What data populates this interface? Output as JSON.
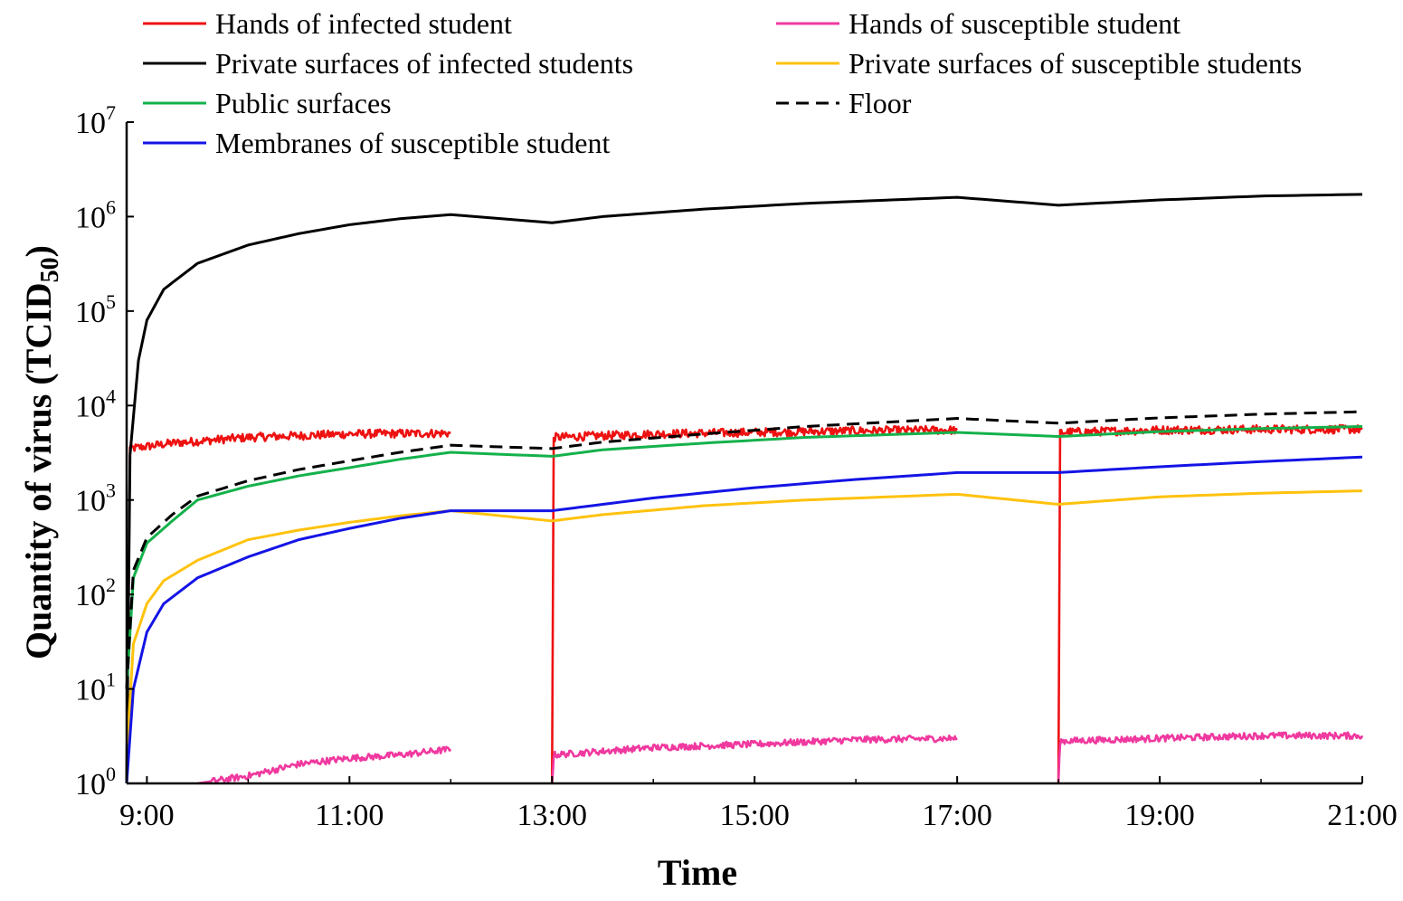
{
  "chart_data": {
    "type": "line",
    "title": "",
    "xlabel": "Time",
    "ylabel": "Quantity of virus (TCID50)",
    "ylabel_main": "Quantity of virus (TCID",
    "ylabel_sub": "50",
    "ylabel_close": ")",
    "yscale": "log",
    "xlim": [
      "8:48",
      "21:00"
    ],
    "ylim": [
      1,
      10000000
    ],
    "x_ticks": [
      "9:00",
      "11:00",
      "13:00",
      "15:00",
      "17:00",
      "19:00",
      "21:00"
    ],
    "y_ticks": [
      {
        "base": "10",
        "exp": "0"
      },
      {
        "base": "10",
        "exp": "1"
      },
      {
        "base": "10",
        "exp": "2"
      },
      {
        "base": "10",
        "exp": "3"
      },
      {
        "base": "10",
        "exp": "4"
      },
      {
        "base": "10",
        "exp": "5"
      },
      {
        "base": "10",
        "exp": "6"
      },
      {
        "base": "10",
        "exp": "7"
      }
    ],
    "grid": false,
    "legend_position": "top",
    "series": [
      {
        "name": "Hands of infected student",
        "color": "#ee1111",
        "dash": "solid",
        "noise": 0.09,
        "points": [
          [
            "8:48",
            1
          ],
          [
            "8:50",
            3500
          ],
          [
            "9:15",
            4000
          ],
          [
            "10:00",
            4600
          ],
          [
            "11:00",
            5000
          ],
          [
            "12:00",
            5100
          ],
          null,
          [
            "13:00",
            1
          ],
          [
            "13:01",
            4600
          ],
          [
            "14:00",
            5000
          ],
          [
            "15:00",
            5200
          ],
          [
            "16:00",
            5400
          ],
          [
            "17:00",
            5500
          ],
          null,
          [
            "18:00",
            1
          ],
          [
            "18:01",
            5200
          ],
          [
            "19:00",
            5500
          ],
          [
            "20:00",
            5600
          ],
          [
            "21:00",
            5600
          ]
        ]
      },
      {
        "name": "Hands of susceptible student",
        "color": "#f0399f",
        "dash": "solid",
        "noise": 0.07,
        "points": [
          [
            "9:30",
            1
          ],
          [
            "10:00",
            1.2
          ],
          [
            "10:30",
            1.6
          ],
          [
            "11:00",
            1.85
          ],
          [
            "11:30",
            2.0
          ],
          [
            "12:00",
            2.3
          ],
          null,
          [
            "13:00",
            1
          ],
          [
            "13:01",
            2.0
          ],
          [
            "14:00",
            2.4
          ],
          [
            "15:00",
            2.6
          ],
          [
            "16:00",
            2.9
          ],
          [
            "17:00",
            3.0
          ],
          null,
          [
            "18:00",
            1
          ],
          [
            "18:01",
            2.8
          ],
          [
            "19:00",
            3.0
          ],
          [
            "20:00",
            3.2
          ],
          [
            "21:00",
            3.2
          ]
        ]
      },
      {
        "name": "Private surfaces of infected students",
        "color": "#000000",
        "dash": "solid",
        "noise": 0,
        "points": [
          [
            "8:48",
            1
          ],
          [
            "8:50",
            3000
          ],
          [
            "8:55",
            30000
          ],
          [
            "9:00",
            80000
          ],
          [
            "9:10",
            170000
          ],
          [
            "9:30",
            320000
          ],
          [
            "10:00",
            500000
          ],
          [
            "10:30",
            660000
          ],
          [
            "11:00",
            820000
          ],
          [
            "11:30",
            950000
          ],
          [
            "12:00",
            1050000
          ],
          [
            "13:00",
            860000
          ],
          [
            "13:30",
            1000000
          ],
          [
            "14:30",
            1200000
          ],
          [
            "15:30",
            1380000
          ],
          [
            "17:00",
            1600000
          ],
          [
            "18:00",
            1320000
          ],
          [
            "19:00",
            1500000
          ],
          [
            "20:00",
            1650000
          ],
          [
            "21:00",
            1720000
          ]
        ]
      },
      {
        "name": "Private surfaces of susceptible students",
        "color": "#ffc20e",
        "dash": "solid",
        "noise": 0,
        "points": [
          [
            "8:48",
            2
          ],
          [
            "8:52",
            30
          ],
          [
            "9:00",
            80
          ],
          [
            "9:10",
            140
          ],
          [
            "9:30",
            230
          ],
          [
            "10:00",
            380
          ],
          [
            "10:30",
            480
          ],
          [
            "11:00",
            580
          ],
          [
            "11:30",
            680
          ],
          [
            "12:00",
            770
          ],
          [
            "13:00",
            600
          ],
          [
            "13:30",
            700
          ],
          [
            "14:30",
            870
          ],
          [
            "15:30",
            1000
          ],
          [
            "17:00",
            1150
          ],
          [
            "18:00",
            900
          ],
          [
            "19:00",
            1080
          ],
          [
            "20:00",
            1180
          ],
          [
            "21:00",
            1250
          ]
        ]
      },
      {
        "name": "Public surfaces",
        "color": "#14b14b",
        "dash": "solid",
        "noise": 0,
        "points": [
          [
            "8:48",
            10
          ],
          [
            "8:52",
            150
          ],
          [
            "9:00",
            350
          ],
          [
            "9:15",
            600
          ],
          [
            "9:30",
            1000
          ],
          [
            "10:00",
            1400
          ],
          [
            "10:30",
            1800
          ],
          [
            "11:00",
            2200
          ],
          [
            "11:30",
            2700
          ],
          [
            "12:00",
            3200
          ],
          [
            "13:00",
            2900
          ],
          [
            "13:30",
            3400
          ],
          [
            "14:30",
            4000
          ],
          [
            "15:30",
            4600
          ],
          [
            "17:00",
            5200
          ],
          [
            "18:00",
            4700
          ],
          [
            "19:00",
            5300
          ],
          [
            "20:00",
            5700
          ],
          [
            "21:00",
            6000
          ]
        ]
      },
      {
        "name": "Floor",
        "color": "#000000",
        "dash": "dashed",
        "noise": 0,
        "points": [
          [
            "8:48",
            10
          ],
          [
            "8:52",
            180
          ],
          [
            "9:00",
            400
          ],
          [
            "9:15",
            700
          ],
          [
            "9:30",
            1100
          ],
          [
            "10:00",
            1600
          ],
          [
            "10:30",
            2100
          ],
          [
            "11:00",
            2600
          ],
          [
            "11:30",
            3200
          ],
          [
            "12:00",
            3800
          ],
          [
            "13:00",
            3500
          ],
          [
            "13:30",
            4100
          ],
          [
            "14:30",
            5000
          ],
          [
            "15:30",
            6000
          ],
          [
            "17:00",
            7300
          ],
          [
            "18:00",
            6500
          ],
          [
            "19:00",
            7400
          ],
          [
            "20:00",
            8100
          ],
          [
            "21:00",
            8600
          ]
        ]
      },
      {
        "name": "Membranes of susceptible student",
        "color": "#1414e6",
        "dash": "solid",
        "noise": 0,
        "points": [
          [
            "8:48",
            1
          ],
          [
            "8:52",
            10
          ],
          [
            "9:00",
            40
          ],
          [
            "9:10",
            80
          ],
          [
            "9:30",
            150
          ],
          [
            "10:00",
            250
          ],
          [
            "10:30",
            380
          ],
          [
            "11:00",
            500
          ],
          [
            "11:30",
            640
          ],
          [
            "12:00",
            770
          ],
          [
            "13:00",
            770
          ],
          [
            "14:00",
            1050
          ],
          [
            "15:00",
            1350
          ],
          [
            "16:00",
            1650
          ],
          [
            "17:00",
            1950
          ],
          [
            "18:00",
            1950
          ],
          [
            "19:00",
            2250
          ],
          [
            "20:00",
            2550
          ],
          [
            "21:00",
            2850
          ]
        ]
      }
    ]
  }
}
